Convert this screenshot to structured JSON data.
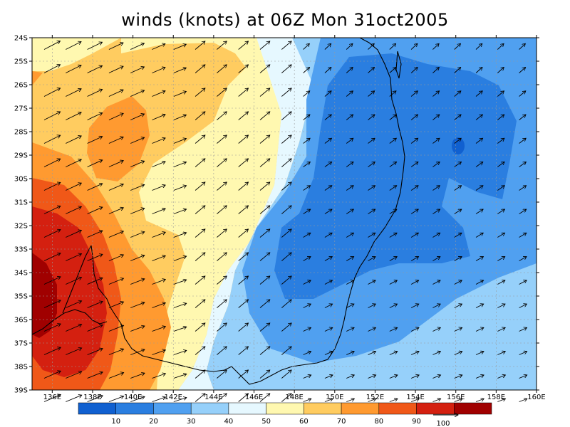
{
  "title": "winds (knots) at 06Z Mon 31oct2005",
  "lat_labels": [
    "24S",
    "25S",
    "26S",
    "27S",
    "28S",
    "29S",
    "30S",
    "31S",
    "32S",
    "33S",
    "34S",
    "35S",
    "36S",
    "37S",
    "38S",
    "39S"
  ],
  "lon_labels": [
    "136E",
    "138E",
    "140E",
    "142E",
    "144E",
    "146E",
    "148E",
    "150E",
    "152E",
    "154E",
    "156E",
    "158E",
    "160E"
  ],
  "colorbar": {
    "colors": [
      "#1060d0",
      "#2a7ee0",
      "#50a0f0",
      "#96d0fa",
      "#e6f8ff",
      "#fff8b0",
      "#ffcc60",
      "#ff9a30",
      "#f05818",
      "#d42010",
      "#a00000"
    ],
    "tick_labels": [
      "10",
      "20",
      "30",
      "40",
      "50",
      "60",
      "70",
      "80",
      "90"
    ]
  },
  "vector_reference": {
    "label": "100"
  },
  "chart_data": {
    "type": "heatmap",
    "variable": "wind speed (knots)",
    "xrange": [
      135,
      160
    ],
    "yrange": [
      -39,
      -24
    ],
    "color_levels": [
      10,
      20,
      30,
      40,
      50,
      60,
      70,
      80,
      90
    ],
    "approx_field": [
      {
        "region": "far southwest (135E-136E, 34S-36S)",
        "min_knots": 90
      },
      {
        "region": "southwest (135E-138E, 32S-38S)",
        "range_knots": [
          80,
          90
        ]
      },
      {
        "region": "west / inland (135E-142E)",
        "range_knots": [
          60,
          80
        ]
      },
      {
        "region": "local maximum near 138E, 28S",
        "range_knots": [
          70,
          80
        ]
      },
      {
        "region": "coast (~143E-148E)",
        "range_knots": [
          40,
          60
        ]
      },
      {
        "region": "east (148E-158E)",
        "range_knots": [
          10,
          30
        ]
      },
      {
        "region": "local minimum near 156E, 29S",
        "range_knots": [
          0,
          10
        ]
      }
    ]
  }
}
